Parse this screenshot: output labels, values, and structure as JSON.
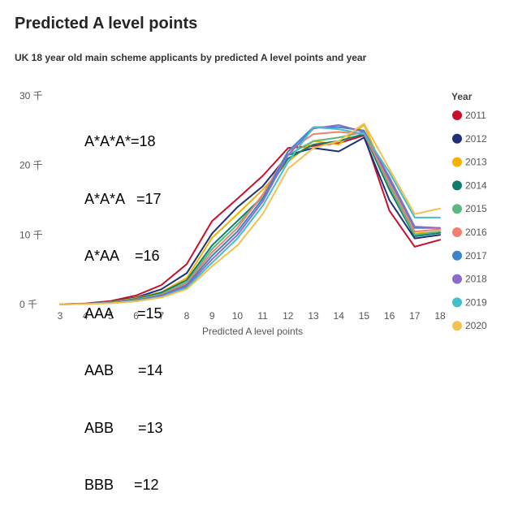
{
  "header": {
    "title": "Predicted A level points",
    "subtitle": "UK 18 year old main scheme applicants  by predicted A level points and year"
  },
  "annotations": [
    "A*A*A*=18",
    "A*A*A   =17",
    "A*AA    =16",
    "AAA      =15",
    "AAB      =14",
    "ABB      =13",
    "BBB     =12"
  ],
  "chart_data": {
    "type": "line",
    "title": "Predicted A level points",
    "xlabel": "Predicted A level points",
    "ylabel": "",
    "x": [
      3,
      4,
      5,
      6,
      7,
      8,
      9,
      10,
      11,
      12,
      13,
      14,
      15,
      16,
      17,
      18
    ],
    "xlim": [
      3,
      18
    ],
    "ylim": [
      0,
      30000
    ],
    "y_ticks": [
      0,
      10000,
      20000,
      30000
    ],
    "y_tick_labels": [
      "0 千",
      "10 千",
      "20 千",
      "30 千"
    ],
    "grid": false,
    "legend": {
      "title": "Year",
      "placement": "right"
    },
    "series": [
      {
        "name": "2011",
        "color": "#c8102e",
        "values": [
          50,
          150,
          500,
          1300,
          2800,
          5800,
          12000,
          15200,
          18500,
          22500,
          22800,
          23200,
          24300,
          13500,
          8300,
          9300
        ]
      },
      {
        "name": "2012",
        "color": "#1f2f78",
        "values": [
          50,
          120,
          400,
          1000,
          2200,
          4500,
          10200,
          14000,
          17000,
          21500,
          22500,
          22000,
          24000,
          15000,
          9500,
          10000
        ]
      },
      {
        "name": "2013",
        "color": "#f0b400",
        "values": [
          30,
          100,
          350,
          900,
          1800,
          3800,
          9600,
          13000,
          16500,
          20500,
          23500,
          23000,
          25800,
          17500,
          10200,
          10500
        ]
      },
      {
        "name": "2014",
        "color": "#0f7a6e",
        "values": [
          30,
          100,
          300,
          800,
          1700,
          3500,
          8500,
          12000,
          15500,
          21000,
          23000,
          23500,
          24500,
          16500,
          9800,
          10300
        ]
      },
      {
        "name": "2015",
        "color": "#5cb87f",
        "values": [
          30,
          90,
          280,
          700,
          1500,
          3200,
          8000,
          11500,
          15500,
          21500,
          23500,
          24000,
          24800,
          17000,
          10000,
          10500
        ]
      },
      {
        "name": "2016",
        "color": "#f07f6e",
        "values": [
          30,
          90,
          260,
          650,
          1400,
          3000,
          7500,
          11000,
          15800,
          22000,
          24500,
          24800,
          24500,
          17500,
          10500,
          10800
        ]
      },
      {
        "name": "2017",
        "color": "#3a86c8",
        "values": [
          30,
          80,
          250,
          600,
          1300,
          2800,
          7000,
          10500,
          15200,
          22000,
          25500,
          25500,
          25000,
          18000,
          11000,
          11000
        ]
      },
      {
        "name": "2018",
        "color": "#8c6cc8",
        "values": [
          30,
          80,
          230,
          550,
          1200,
          2600,
          6500,
          10000,
          14800,
          21500,
          25300,
          25800,
          24800,
          18300,
          11200,
          11000
        ]
      },
      {
        "name": "2019",
        "color": "#40c0c8",
        "values": [
          20,
          70,
          200,
          500,
          1100,
          2400,
          6000,
          9500,
          14200,
          20500,
          25500,
          25200,
          24500,
          19000,
          12500,
          12500
        ]
      },
      {
        "name": "2020",
        "color": "#f2c250",
        "values": [
          20,
          60,
          180,
          450,
          1000,
          2200,
          5500,
          8500,
          13000,
          19500,
          22500,
          23500,
          26000,
          19500,
          13000,
          13800
        ]
      }
    ]
  }
}
